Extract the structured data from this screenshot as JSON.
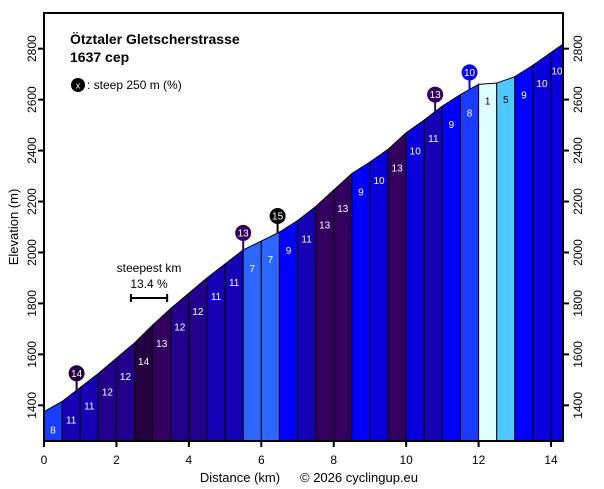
{
  "chart_data": {
    "type": "area",
    "title": "Ötztaler Gletscherstrasse",
    "subtitle": "1637 cep",
    "legend_note": ": steep 250 m (%)",
    "legend_marker": "x",
    "xlabel": "Distance (km)",
    "ylabel": "Elevation (m)",
    "copyright": "© 2026 cyclingup.eu",
    "xlim": [
      0,
      14.33
    ],
    "ylim": [
      1260,
      2940
    ],
    "xticks": [
      0,
      2,
      4,
      6,
      8,
      10,
      12,
      14
    ],
    "yticks": [
      1400,
      1600,
      1800,
      2000,
      2200,
      2400,
      2600,
      2800
    ],
    "grid": false,
    "start_elevation": 1375,
    "segment_length_km": 0.5,
    "total_distance_km": 14.33,
    "segments_grade": [
      8,
      11,
      11,
      12,
      12,
      14,
      13,
      12,
      12,
      11,
      11,
      7,
      7,
      9,
      11,
      13,
      13,
      9,
      10,
      13,
      10,
      11,
      9,
      8,
      1,
      5,
      9,
      10,
      10
    ],
    "steepest_km": {
      "label": "steepest km",
      "value": "13.4 %",
      "from_km": 2.4,
      "to_km": 3.4
    },
    "steep_markers": [
      {
        "km": 0.9,
        "grade": 14
      },
      {
        "km": 5.5,
        "grade": 13
      },
      {
        "km": 6.45,
        "grade": 15
      },
      {
        "km": 10.8,
        "grade": 13
      },
      {
        "km": 11.75,
        "grade": 10
      }
    ],
    "grade_colors": {
      "1": "#e0ffff",
      "5": "#50c8ff",
      "7": "#2a66ff",
      "8": "#1a3cff",
      "9": "#0000ff",
      "10": "#0a00dd",
      "11": "#1600b4",
      "12": "#22008c",
      "13": "#330060",
      "14": "#240040",
      "15": "#000000"
    }
  }
}
